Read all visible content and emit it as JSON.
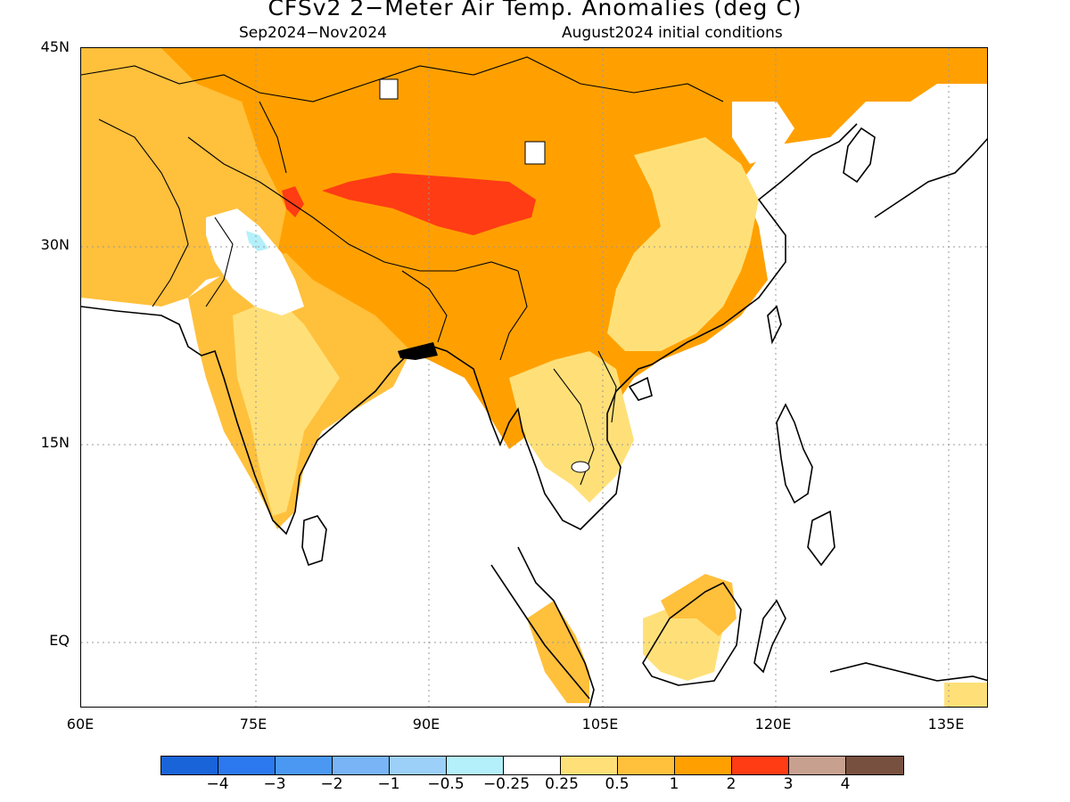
{
  "title": "CFSv2 2−Meter Air Temp. Anomalies (deg C)",
  "subtitle_left": "Sep2024−Nov2024",
  "subtitle_right": "August2024 initial conditions",
  "lat_labels": [
    "45N",
    "30N",
    "15N",
    "EQ"
  ],
  "lon_labels": [
    "60E",
    "75E",
    "90E",
    "105E",
    "120E",
    "135E"
  ],
  "colorbar": {
    "colors": [
      "#1864d8",
      "#2b78ef",
      "#4a98f2",
      "#78b4f6",
      "#9cd0f9",
      "#b4f0fa",
      "#ffffff",
      "#ffe078",
      "#ffc03c",
      "#ffa000",
      "#ff3c14",
      "#c8a090",
      "#785040"
    ],
    "labels": [
      "−4",
      "−3",
      "−2",
      "−1",
      "−0.5",
      "−0.25",
      "0.25",
      "0.5",
      "1",
      "2",
      "3",
      "4"
    ]
  },
  "map_data": {
    "region": "South and East Asia",
    "lon_range": [
      60,
      140
    ],
    "lat_range": [
      -6,
      45
    ],
    "variable": "2-meter air temperature anomaly",
    "units": "deg C"
  }
}
